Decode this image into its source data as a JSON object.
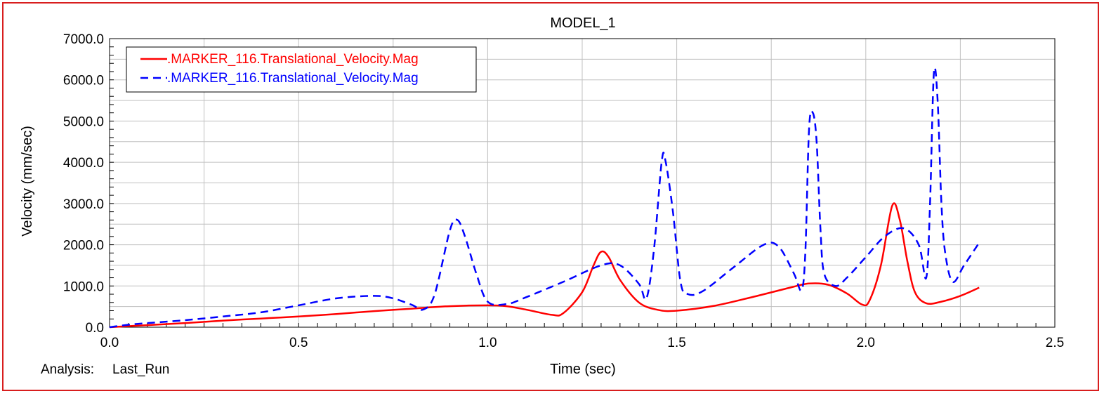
{
  "chart_data": {
    "type": "line",
    "title": "MODEL_1",
    "xlabel": "Time (sec)",
    "ylabel": "Velocity (mm/sec)",
    "xlim": [
      0.0,
      2.5
    ],
    "ylim": [
      0.0,
      7000.0
    ],
    "x_ticks": [
      "0.0",
      "0.5",
      "1.0",
      "1.5",
      "2.0",
      "2.5"
    ],
    "y_ticks": [
      "0.0",
      "1000.0",
      "2000.0",
      "3000.0",
      "4000.0",
      "5000.0",
      "6000.0",
      "7000.0"
    ],
    "grid": true,
    "legend_position": "top-left",
    "footer": {
      "analysis_label": "Analysis:",
      "analysis_value": "Last_Run"
    },
    "series": [
      {
        "name": ".MARKER_116.Translational_Velocity.Mag",
        "color": "#ff0000",
        "style": "solid",
        "points": [
          [
            0.0,
            0
          ],
          [
            0.1,
            50
          ],
          [
            0.2,
            100
          ],
          [
            0.3,
            160
          ],
          [
            0.4,
            210
          ],
          [
            0.5,
            260
          ],
          [
            0.6,
            320
          ],
          [
            0.7,
            390
          ],
          [
            0.8,
            450
          ],
          [
            0.9,
            510
          ],
          [
            1.0,
            530
          ],
          [
            1.05,
            510
          ],
          [
            1.1,
            430
          ],
          [
            1.17,
            300
          ],
          [
            1.2,
            340
          ],
          [
            1.25,
            850
          ],
          [
            1.28,
            1500
          ],
          [
            1.3,
            1830
          ],
          [
            1.32,
            1700
          ],
          [
            1.35,
            1150
          ],
          [
            1.4,
            600
          ],
          [
            1.45,
            420
          ],
          [
            1.5,
            400
          ],
          [
            1.6,
            520
          ],
          [
            1.7,
            730
          ],
          [
            1.8,
            960
          ],
          [
            1.85,
            1060
          ],
          [
            1.9,
            1030
          ],
          [
            1.95,
            820
          ],
          [
            1.99,
            550
          ],
          [
            2.01,
            650
          ],
          [
            2.04,
            1500
          ],
          [
            2.07,
            2950
          ],
          [
            2.09,
            2600
          ],
          [
            2.11,
            1600
          ],
          [
            2.13,
            850
          ],
          [
            2.16,
            580
          ],
          [
            2.2,
            620
          ],
          [
            2.25,
            760
          ],
          [
            2.3,
            960
          ]
        ]
      },
      {
        "name": ".MARKER_116.Translational_Velocity.Mag",
        "color": "#0000ff",
        "style": "dashed",
        "points": [
          [
            0.0,
            0
          ],
          [
            0.05,
            60
          ],
          [
            0.1,
            100
          ],
          [
            0.2,
            170
          ],
          [
            0.3,
            260
          ],
          [
            0.4,
            360
          ],
          [
            0.5,
            530
          ],
          [
            0.6,
            700
          ],
          [
            0.7,
            760
          ],
          [
            0.75,
            700
          ],
          [
            0.8,
            540
          ],
          [
            0.83,
            430
          ],
          [
            0.86,
            800
          ],
          [
            0.9,
            2350
          ],
          [
            0.92,
            2600
          ],
          [
            0.94,
            2200
          ],
          [
            0.97,
            1300
          ],
          [
            1.0,
            620
          ],
          [
            1.05,
            560
          ],
          [
            1.1,
            720
          ],
          [
            1.2,
            1100
          ],
          [
            1.3,
            1500
          ],
          [
            1.35,
            1500
          ],
          [
            1.4,
            1050
          ],
          [
            1.42,
            700
          ],
          [
            1.44,
            1900
          ],
          [
            1.46,
            4000
          ],
          [
            1.47,
            4050
          ],
          [
            1.49,
            2800
          ],
          [
            1.51,
            1100
          ],
          [
            1.53,
            800
          ],
          [
            1.57,
            880
          ],
          [
            1.65,
            1450
          ],
          [
            1.73,
            2000
          ],
          [
            1.77,
            1950
          ],
          [
            1.81,
            1300
          ],
          [
            1.83,
            900
          ],
          [
            1.84,
            1800
          ],
          [
            1.85,
            4800
          ],
          [
            1.86,
            5200
          ],
          [
            1.87,
            4500
          ],
          [
            1.88,
            2400
          ],
          [
            1.89,
            1300
          ],
          [
            1.92,
            1000
          ],
          [
            1.95,
            1200
          ],
          [
            2.0,
            1700
          ],
          [
            2.05,
            2200
          ],
          [
            2.1,
            2400
          ],
          [
            2.14,
            2000
          ],
          [
            2.16,
            1200
          ],
          [
            2.17,
            3000
          ],
          [
            2.18,
            6150
          ],
          [
            2.19,
            5500
          ],
          [
            2.2,
            3000
          ],
          [
            2.21,
            1800
          ],
          [
            2.23,
            1100
          ],
          [
            2.26,
            1500
          ],
          [
            2.3,
            2050
          ]
        ]
      }
    ]
  }
}
